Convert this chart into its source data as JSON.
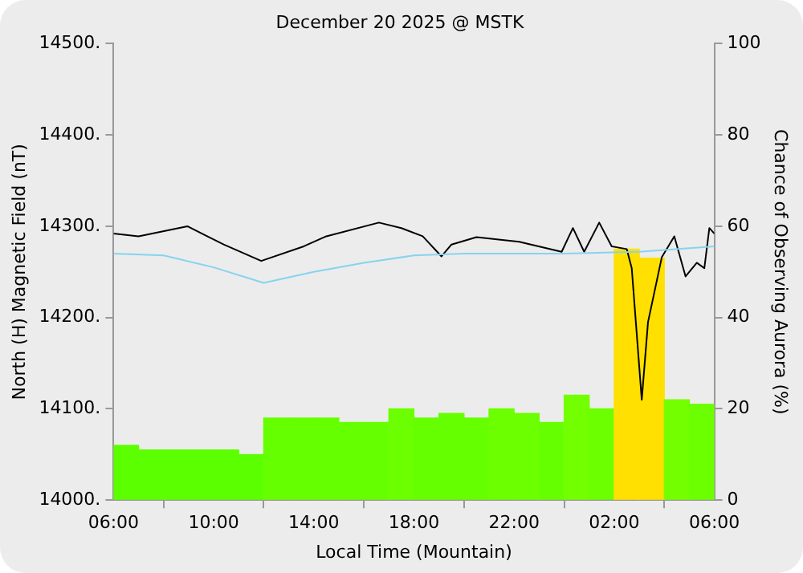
{
  "chart_data": {
    "type": "line",
    "title": "December 20 2025 @ MSTK",
    "xlabel": "Local Time (Mountain)",
    "ylabel": "North (H) Magnetic Field (nT)",
    "y2label": "Chance of Observing Aurora (%)",
    "xlim": [
      "2025-12-20T06:00",
      "2025-12-21T06:00"
    ],
    "xticks": [
      {
        "value": "2025-12-20T06:00",
        "label": "06:00"
      },
      {
        "value": "2025-12-20T10:00",
        "label": "10:00"
      },
      {
        "value": "2025-12-20T14:00",
        "label": "14:00"
      },
      {
        "value": "2025-12-20T18:00",
        "label": "18:00"
      },
      {
        "value": "2025-12-20T22:00",
        "label": "22:00"
      },
      {
        "value": "2025-12-21T02:00",
        "label": "02:00"
      },
      {
        "value": "2025-12-21T06:00",
        "label": "06:00"
      }
    ],
    "ylim": [
      14000,
      14500
    ],
    "yticks": [
      {
        "value": 14000,
        "label": "14000."
      },
      {
        "value": 14100,
        "label": "14100."
      },
      {
        "value": 14200,
        "label": "14200."
      },
      {
        "value": 14300,
        "label": "14300."
      },
      {
        "value": 14400,
        "label": "14400."
      },
      {
        "value": 14500,
        "label": "14500."
      }
    ],
    "y2lim": [
      0,
      100
    ],
    "y2ticks": [
      0,
      20,
      40,
      60,
      80,
      100
    ],
    "grid": false,
    "legend": false,
    "marker": "none",
    "series": [
      {
        "type": "bar",
        "axis": "y2",
        "x": [
          "2025-12-20T06:30",
          "2025-12-20T07:30",
          "2025-12-20T08:30",
          "2025-12-20T09:30",
          "2025-12-20T10:30",
          "2025-12-20T11:30",
          "2025-12-20T12:30",
          "2025-12-20T13:30",
          "2025-12-20T14:30",
          "2025-12-20T15:30",
          "2025-12-20T16:30",
          "2025-12-20T17:30",
          "2025-12-20T18:30",
          "2025-12-20T19:30",
          "2025-12-20T20:30",
          "2025-12-20T21:30",
          "2025-12-20T22:30",
          "2025-12-20T23:30",
          "2025-12-21T00:30",
          "2025-12-21T01:30",
          "2025-12-21T02:30",
          "2025-12-21T03:30",
          "2025-12-21T04:30",
          "2025-12-21T05:30"
        ],
        "values": [
          12,
          11,
          11,
          11,
          11,
          10,
          18,
          18,
          18,
          17,
          17,
          20,
          18,
          19,
          18,
          20,
          19,
          17,
          23,
          20,
          55,
          53,
          22,
          21
        ],
        "colors": [
          "#5cff00",
          "#5cff00",
          "#5cff00",
          "#5cff00",
          "#5cff00",
          "#5cff00",
          "#66ff00",
          "#66ff00",
          "#66ff00",
          "#66ff00",
          "#66ff00",
          "#6cff00",
          "#66ff00",
          "#66ff00",
          "#66ff00",
          "#6cff00",
          "#6cff00",
          "#66ff00",
          "#74ff00",
          "#6cff00",
          "#ffe000",
          "#ffe000",
          "#74ff00",
          "#6cff00"
        ]
      },
      {
        "axis": "y",
        "color": "#87d3ee",
        "x": [
          "2025-12-20T06:00",
          "2025-12-20T08:00",
          "2025-12-20T10:00",
          "2025-12-20T12:00",
          "2025-12-20T14:00",
          "2025-12-20T16:00",
          "2025-12-20T18:00",
          "2025-12-20T20:00",
          "2025-12-21T00:00",
          "2025-12-21T03:00",
          "2025-12-21T06:00"
        ],
        "values": [
          14270,
          14268,
          14255,
          14238,
          14250,
          14260,
          14268,
          14270,
          14270,
          14272,
          14278
        ]
      },
      {
        "axis": "y",
        "color": "#000000",
        "x": [
          "2025-12-20T06:00",
          "2025-12-20T07:00",
          "2025-12-20T08:57",
          "2025-12-20T10:24",
          "2025-12-20T11:54",
          "2025-12-20T13:36",
          "2025-12-20T14:30",
          "2025-12-20T16:36",
          "2025-12-20T17:30",
          "2025-12-20T18:21",
          "2025-12-20T19:06",
          "2025-12-20T19:30",
          "2025-12-20T20:30",
          "2025-12-20T22:12",
          "2025-12-20T23:54",
          "2025-12-21T00:21",
          "2025-12-21T00:48",
          "2025-12-21T01:24",
          "2025-12-21T01:54",
          "2025-12-21T02:30",
          "2025-12-21T02:42",
          "2025-12-21T03:06",
          "2025-12-21T03:21",
          "2025-12-21T03:54",
          "2025-12-21T04:24",
          "2025-12-21T04:51",
          "2025-12-21T05:18",
          "2025-12-21T05:36",
          "2025-12-21T05:48",
          "2025-12-21T06:00"
        ],
        "values": [
          14292,
          14289,
          14300,
          14280,
          14262,
          14278,
          14289,
          14304,
          14298,
          14289,
          14267,
          14280,
          14288,
          14283,
          14272,
          14298,
          14272,
          14304,
          14278,
          14275,
          14254,
          14110,
          14195,
          14266,
          14289,
          14245,
          14260,
          14254,
          14298,
          14292
        ]
      }
    ]
  }
}
